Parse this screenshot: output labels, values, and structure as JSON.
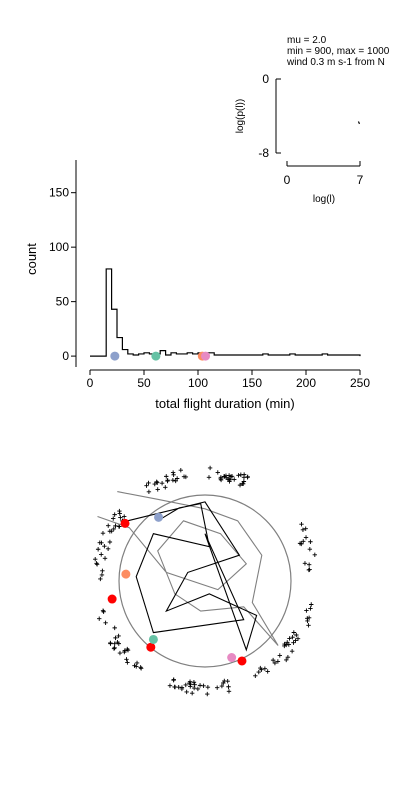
{
  "chart_data": [
    {
      "type": "histogram",
      "xlabel": "total flight duration (min)",
      "ylabel": "count",
      "xlim": [
        0,
        250
      ],
      "ylim": [
        -10,
        180
      ],
      "xticks": [
        0,
        50,
        100,
        150,
        200,
        250
      ],
      "yticks": [
        0,
        50,
        100,
        150
      ],
      "bin_width": 5,
      "bins": [
        {
          "x": 0,
          "count": 0
        },
        {
          "x": 5,
          "count": 0
        },
        {
          "x": 10,
          "count": 0
        },
        {
          "x": 15,
          "count": 80
        },
        {
          "x": 20,
          "count": 43
        },
        {
          "x": 25,
          "count": 17
        },
        {
          "x": 30,
          "count": 6
        },
        {
          "x": 35,
          "count": 2
        },
        {
          "x": 40,
          "count": 1
        },
        {
          "x": 45,
          "count": 2
        },
        {
          "x": 50,
          "count": 3
        },
        {
          "x": 55,
          "count": 2
        },
        {
          "x": 60,
          "count": 2
        },
        {
          "x": 65,
          "count": 5
        },
        {
          "x": 70,
          "count": 1
        },
        {
          "x": 75,
          "count": 3
        },
        {
          "x": 80,
          "count": 2
        },
        {
          "x": 85,
          "count": 2
        },
        {
          "x": 90,
          "count": 3
        },
        {
          "x": 95,
          "count": 2
        },
        {
          "x": 100,
          "count": 3
        },
        {
          "x": 105,
          "count": 3
        },
        {
          "x": 110,
          "count": 3
        },
        {
          "x": 115,
          "count": 1
        },
        {
          "x": 120,
          "count": 1
        },
        {
          "x": 125,
          "count": 1
        },
        {
          "x": 130,
          "count": 1
        },
        {
          "x": 135,
          "count": 1
        },
        {
          "x": 140,
          "count": 1
        },
        {
          "x": 145,
          "count": 1
        },
        {
          "x": 150,
          "count": 1
        },
        {
          "x": 155,
          "count": 1
        },
        {
          "x": 160,
          "count": 2
        },
        {
          "x": 165,
          "count": 1
        },
        {
          "x": 170,
          "count": 1
        },
        {
          "x": 175,
          "count": 1
        },
        {
          "x": 180,
          "count": 1
        },
        {
          "x": 185,
          "count": 2
        },
        {
          "x": 190,
          "count": 1
        },
        {
          "x": 195,
          "count": 1
        },
        {
          "x": 200,
          "count": 1
        },
        {
          "x": 205,
          "count": 1
        },
        {
          "x": 210,
          "count": 1
        },
        {
          "x": 215,
          "count": 2
        },
        {
          "x": 220,
          "count": 1
        },
        {
          "x": 225,
          "count": 1
        },
        {
          "x": 230,
          "count": 1
        },
        {
          "x": 235,
          "count": 1
        },
        {
          "x": 240,
          "count": 1
        },
        {
          "x": 245,
          "count": 1
        }
      ],
      "markers": [
        {
          "x": 23,
          "y": 0,
          "color": "#8da0cb"
        },
        {
          "x": 61,
          "y": 0,
          "color": "#66c2a5"
        },
        {
          "x": 104,
          "y": 0,
          "color": "#fc8d62"
        },
        {
          "x": 107,
          "y": 0,
          "color": "#e78ac3"
        }
      ],
      "grid": false
    },
    {
      "type": "line",
      "xlabel": "log(l)",
      "ylabel": "log(p(l))",
      "xlim": [
        0,
        7
      ],
      "ylim": [
        -8,
        0
      ],
      "xticks": [
        0,
        7
      ],
      "yticks": [
        0,
        -8
      ],
      "series": [
        {
          "x": [
            6.85,
            6.95
          ],
          "y": [
            -4.6,
            -4.85
          ]
        }
      ],
      "annotation": [
        "mu = 2.0",
        "min = 900, max = 1000",
        "wind 0.3 m s-1 from N"
      ]
    },
    {
      "type": "scatter",
      "circle_color": "#808080",
      "plume_color": "#000000",
      "sources": {
        "color": "#ff0000",
        "points": [
          [
            -0.93,
            0.67
          ],
          [
            -1.08,
            -0.21
          ],
          [
            -0.63,
            -0.77
          ],
          [
            0.43,
            -0.93
          ]
        ]
      },
      "colored_points": [
        {
          "x": -0.54,
          "y": 0.74,
          "color": "#8da0cb"
        },
        {
          "x": -0.92,
          "y": 0.08,
          "color": "#fc8d62"
        },
        {
          "x": -0.6,
          "y": -0.68,
          "color": "#66c2a5"
        },
        {
          "x": 0.31,
          "y": -0.89,
          "color": "#e78ac3"
        }
      ]
    }
  ]
}
